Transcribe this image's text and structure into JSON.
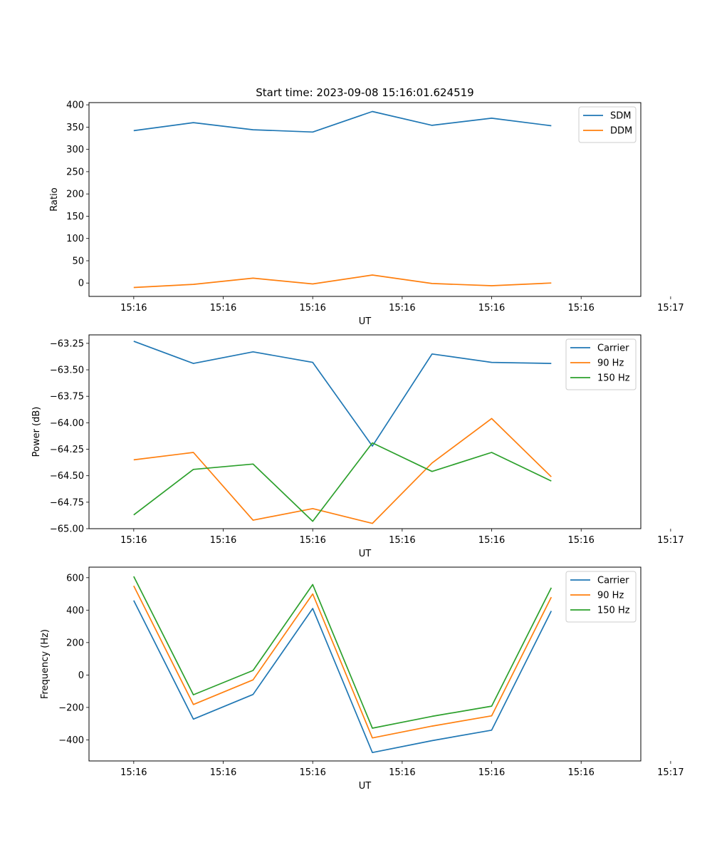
{
  "chart_data": [
    {
      "type": "line",
      "title": "Start time: 2023-09-08 15:16:01.624519",
      "xlabel": "UT",
      "ylabel": "Ratio",
      "xlim": [
        -0.75,
        8.5
      ],
      "ylim": [
        -30,
        405
      ],
      "x_ticks": [
        0,
        1.5,
        3,
        4.5,
        6,
        7.5,
        9
      ],
      "x_tick_labels": [
        "15:16",
        "15:16",
        "15:16",
        "15:16",
        "15:16",
        "15:16",
        "15:17"
      ],
      "y_ticks": [
        0,
        50,
        100,
        150,
        200,
        250,
        300,
        350,
        400
      ],
      "y_tick_labels": [
        "0",
        "50",
        "100",
        "150",
        "200",
        "250",
        "300",
        "350",
        "400"
      ],
      "x": [
        0,
        1,
        2,
        3,
        4,
        5,
        6,
        7
      ],
      "legend_position": "top-right",
      "series": [
        {
          "name": "SDM",
          "color": "#1f77b4",
          "values": [
            342,
            360,
            344,
            339,
            385,
            354,
            370,
            353
          ]
        },
        {
          "name": "DDM",
          "color": "#ff7f0e",
          "values": [
            -10,
            -3,
            11,
            -2,
            18,
            -1,
            -6,
            0
          ]
        }
      ]
    },
    {
      "type": "line",
      "title": "",
      "xlabel": "UT",
      "ylabel": "Power (dB)",
      "xlim": [
        -0.75,
        8.5
      ],
      "ylim": [
        -65.0,
        -63.17
      ],
      "x_ticks": [
        0,
        1.5,
        3,
        4.5,
        6,
        7.5,
        9
      ],
      "x_tick_labels": [
        "15:16",
        "15:16",
        "15:16",
        "15:16",
        "15:16",
        "15:16",
        "15:17"
      ],
      "y_ticks": [
        -63.25,
        -63.5,
        -63.75,
        -64.0,
        -64.25,
        -64.5,
        -64.75,
        -65.0
      ],
      "y_tick_labels": [
        "−63.25",
        "−63.50",
        "−63.75",
        "−64.00",
        "−64.25",
        "−64.50",
        "−64.75",
        "−65.00"
      ],
      "x": [
        0,
        1,
        2,
        3,
        4,
        5,
        6,
        7
      ],
      "legend_position": "top-right",
      "series": [
        {
          "name": "Carrier",
          "color": "#1f77b4",
          "values": [
            -63.23,
            -63.44,
            -63.33,
            -63.43,
            -64.22,
            -63.35,
            -63.43,
            -63.44
          ]
        },
        {
          "name": "90 Hz",
          "color": "#ff7f0e",
          "values": [
            -64.35,
            -64.28,
            -64.92,
            -64.81,
            -64.95,
            -64.38,
            -63.96,
            -64.51
          ]
        },
        {
          "name": "150 Hz",
          "color": "#2ca02c",
          "values": [
            -64.87,
            -64.44,
            -64.39,
            -64.93,
            -64.19,
            -64.46,
            -64.28,
            -64.55
          ]
        }
      ]
    },
    {
      "type": "line",
      "title": "",
      "xlabel": "UT",
      "ylabel": "Frequency (Hz)",
      "xlim": [
        -0.75,
        8.5
      ],
      "ylim": [
        -530,
        665
      ],
      "x_ticks": [
        0,
        1.5,
        3,
        4.5,
        6,
        7.5,
        9
      ],
      "x_tick_labels": [
        "15:16",
        "15:16",
        "15:16",
        "15:16",
        "15:16",
        "15:16",
        "15:17"
      ],
      "y_ticks": [
        -400,
        -200,
        0,
        200,
        400,
        600
      ],
      "y_tick_labels": [
        "−400",
        "−200",
        "0",
        "200",
        "400",
        "600"
      ],
      "x": [
        0,
        1,
        2,
        3,
        4,
        5,
        6,
        7
      ],
      "legend_position": "top-right",
      "series": [
        {
          "name": "Carrier",
          "color": "#1f77b4",
          "values": [
            460,
            -272,
            -120,
            410,
            -478,
            -405,
            -340,
            395
          ]
        },
        {
          "name": "90 Hz",
          "color": "#ff7f0e",
          "values": [
            550,
            -182,
            -30,
            500,
            -388,
            -315,
            -252,
            480
          ]
        },
        {
          "name": "150 Hz",
          "color": "#2ca02c",
          "values": [
            608,
            -122,
            28,
            558,
            -328,
            -255,
            -192,
            538
          ]
        }
      ]
    }
  ]
}
